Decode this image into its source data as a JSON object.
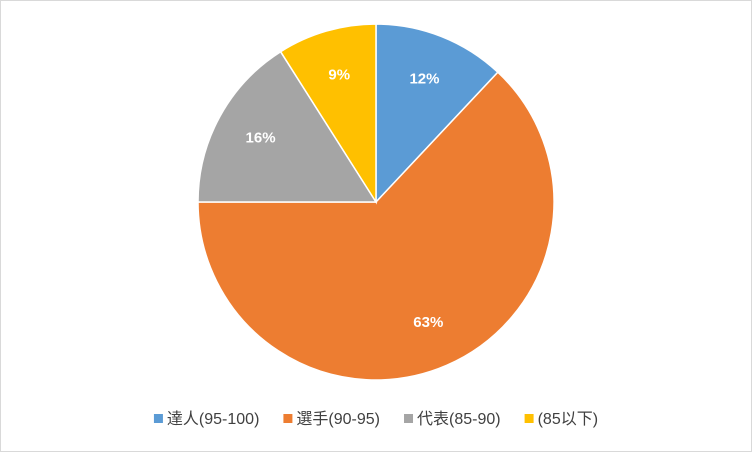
{
  "chart_data": {
    "type": "pie",
    "categories": [
      "達人(95-100)",
      "選手(90-95)",
      "代表(85-90)",
      "(85以下)"
    ],
    "values": [
      12,
      63,
      16,
      9
    ],
    "value_labels": [
      "12%",
      "63%",
      "16%",
      "9%"
    ],
    "colors": [
      "#5b9bd5",
      "#ed7d31",
      "#a5a5a5",
      "#ffc000"
    ],
    "legend": "bottom"
  }
}
